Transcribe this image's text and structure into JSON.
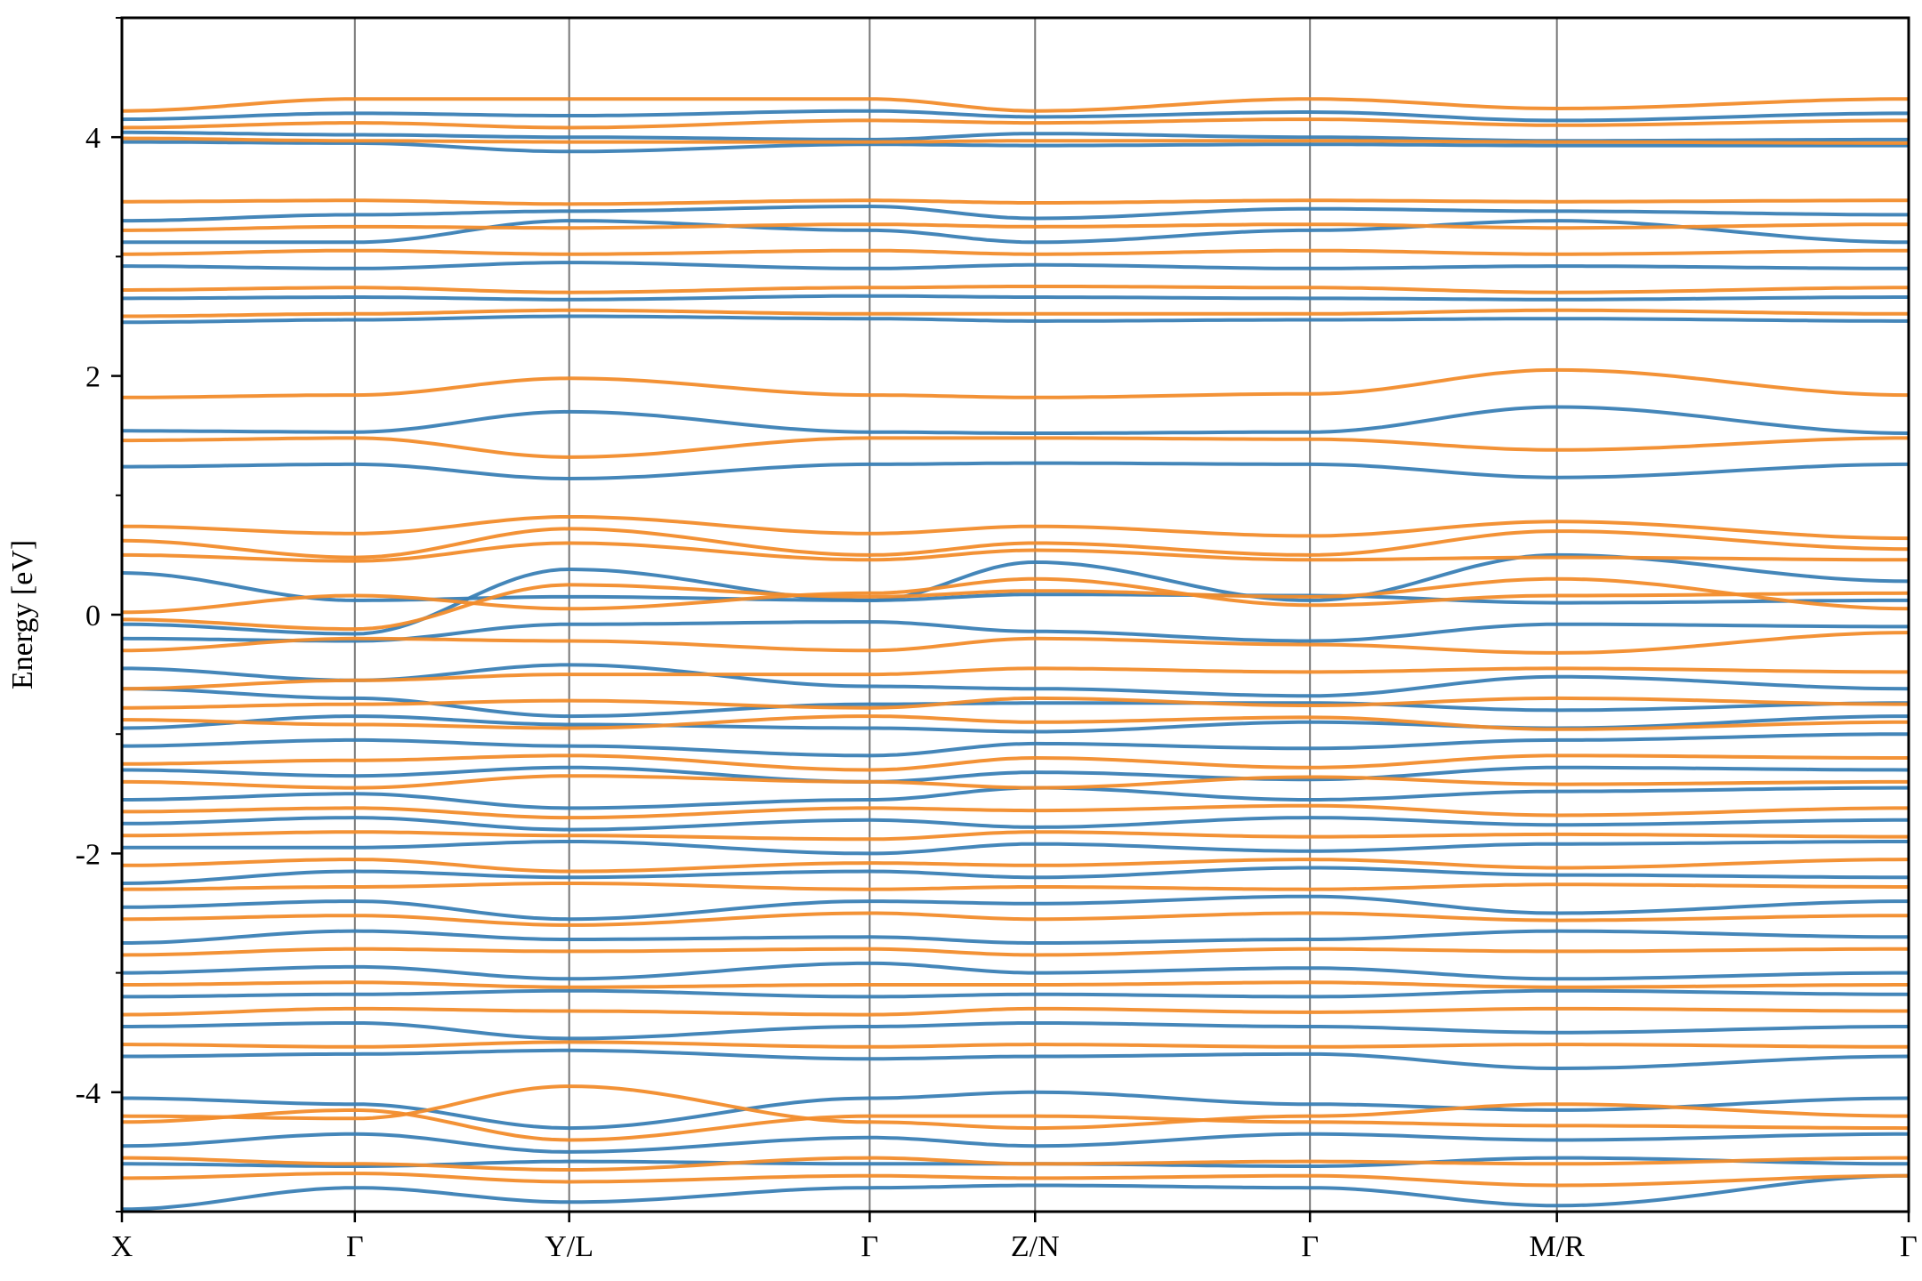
{
  "chart_data": {
    "type": "line",
    "ylabel": "Energy [eV]",
    "xlabel": "",
    "ylim": [
      -5.0,
      5.0
    ],
    "y_major_ticks": [
      -4,
      -2,
      0,
      2,
      4
    ],
    "y_tick_labels": [
      "-4",
      "-2",
      "0",
      "2",
      "4"
    ],
    "y_minor_ticks": [
      -5,
      -3,
      -1,
      1,
      3,
      5
    ],
    "k_path": [
      {
        "label": "X",
        "x": 0.0
      },
      {
        "label": "Γ",
        "x": 1.0
      },
      {
        "label": "Y/L",
        "x": 1.92
      },
      {
        "label": "Γ",
        "x": 3.21
      },
      {
        "label": "Z/N",
        "x": 3.92
      },
      {
        "label": "Γ",
        "x": 5.1
      },
      {
        "label": "M/R",
        "x": 6.16
      },
      {
        "label": "Γ",
        "x": 7.67
      }
    ],
    "xlim": [
      0.0,
      7.67
    ],
    "segments": [
      [
        0.0,
        1.92
      ],
      [
        1.92,
        3.92
      ],
      [
        3.92,
        6.16
      ],
      [
        6.16,
        7.67
      ]
    ],
    "vlines_at": [
      1.0,
      1.92,
      3.21,
      3.92,
      5.1,
      6.16
    ],
    "grid": false,
    "legend": "none",
    "series": [
      {
        "color": "#3a7fb5",
        "bands_at_nodes": [
          [
            3.96,
            3.95,
            3.88,
            3.94,
            3.93,
            3.94,
            3.93,
            3.93
          ],
          [
            4.04,
            4.02,
            4.0,
            3.98,
            4.03,
            4.0,
            3.97,
            3.98
          ],
          [
            4.15,
            4.2,
            4.18,
            4.22,
            4.17,
            4.21,
            4.14,
            4.2
          ],
          [
            2.45,
            2.47,
            2.5,
            2.48,
            2.46,
            2.47,
            2.48,
            2.46
          ],
          [
            2.65,
            2.66,
            2.64,
            2.67,
            2.66,
            2.65,
            2.64,
            2.66
          ],
          [
            2.92,
            2.9,
            2.95,
            2.9,
            2.93,
            2.9,
            2.92,
            2.9
          ],
          [
            3.12,
            3.12,
            3.3,
            3.22,
            3.12,
            3.22,
            3.3,
            3.12
          ],
          [
            3.3,
            3.35,
            3.38,
            3.42,
            3.32,
            3.4,
            3.38,
            3.35
          ],
          [
            1.24,
            1.26,
            1.14,
            1.26,
            1.27,
            1.26,
            1.15,
            1.26
          ],
          [
            1.54,
            1.53,
            1.7,
            1.53,
            1.52,
            1.53,
            1.74,
            1.52
          ],
          [
            0.35,
            0.12,
            0.15,
            0.12,
            0.17,
            0.16,
            0.1,
            0.12
          ],
          [
            -0.08,
            -0.16,
            0.38,
            0.12,
            0.44,
            0.12,
            0.5,
            0.28
          ],
          [
            -0.2,
            -0.22,
            -0.08,
            -0.06,
            -0.14,
            -0.22,
            -0.08,
            -0.1
          ],
          [
            -0.45,
            -0.55,
            -0.42,
            -0.6,
            -0.62,
            -0.68,
            -0.52,
            -0.62
          ],
          [
            -0.62,
            -0.7,
            -0.85,
            -0.75,
            -0.74,
            -0.74,
            -0.8,
            -0.74
          ],
          [
            -0.95,
            -0.85,
            -0.92,
            -0.95,
            -0.98,
            -0.9,
            -0.95,
            -0.85
          ],
          [
            -1.1,
            -1.05,
            -1.1,
            -1.18,
            -1.08,
            -1.12,
            -1.05,
            -1.0
          ],
          [
            -1.3,
            -1.35,
            -1.28,
            -1.4,
            -1.32,
            -1.38,
            -1.28,
            -1.3
          ],
          [
            -1.55,
            -1.5,
            -1.62,
            -1.55,
            -1.45,
            -1.55,
            -1.48,
            -1.45
          ],
          [
            -1.75,
            -1.7,
            -1.8,
            -1.72,
            -1.78,
            -1.7,
            -1.76,
            -1.72
          ],
          [
            -1.95,
            -1.95,
            -1.9,
            -2.0,
            -1.92,
            -1.98,
            -1.92,
            -1.9
          ],
          [
            -2.25,
            -2.15,
            -2.2,
            -2.15,
            -2.2,
            -2.12,
            -2.18,
            -2.2
          ],
          [
            -2.45,
            -2.4,
            -2.55,
            -2.4,
            -2.42,
            -2.36,
            -2.5,
            -2.4
          ],
          [
            -2.75,
            -2.65,
            -2.72,
            -2.7,
            -2.75,
            -2.72,
            -2.65,
            -2.7
          ],
          [
            -3.0,
            -2.95,
            -3.05,
            -2.92,
            -3.0,
            -2.96,
            -3.05,
            -3.0
          ],
          [
            -3.2,
            -3.18,
            -3.15,
            -3.2,
            -3.18,
            -3.2,
            -3.15,
            -3.18
          ],
          [
            -3.45,
            -3.42,
            -3.55,
            -3.45,
            -3.42,
            -3.45,
            -3.5,
            -3.45
          ],
          [
            -3.7,
            -3.68,
            -3.65,
            -3.72,
            -3.7,
            -3.68,
            -3.8,
            -3.7
          ],
          [
            -4.05,
            -4.1,
            -4.3,
            -4.05,
            -4.0,
            -4.1,
            -4.15,
            -4.05
          ],
          [
            -4.45,
            -4.35,
            -4.5,
            -4.38,
            -4.45,
            -4.35,
            -4.4,
            -4.35
          ],
          [
            -4.6,
            -4.62,
            -4.58,
            -4.6,
            -4.6,
            -4.62,
            -4.55,
            -4.6
          ],
          [
            -4.98,
            -4.8,
            -4.92,
            -4.8,
            -4.78,
            -4.8,
            -4.95,
            -4.7
          ]
        ]
      },
      {
        "color": "#f28c2b",
        "bands_at_nodes": [
          [
            3.99,
            3.97,
            3.96,
            3.96,
            3.97,
            3.97,
            3.96,
            3.95
          ],
          [
            4.08,
            4.12,
            4.08,
            4.14,
            4.12,
            4.15,
            4.1,
            4.14
          ],
          [
            4.22,
            4.32,
            4.32,
            4.32,
            4.22,
            4.32,
            4.24,
            4.32
          ],
          [
            2.5,
            2.52,
            2.55,
            2.52,
            2.52,
            2.52,
            2.55,
            2.52
          ],
          [
            2.72,
            2.74,
            2.7,
            2.74,
            2.75,
            2.74,
            2.7,
            2.74
          ],
          [
            3.02,
            3.05,
            3.02,
            3.05,
            3.02,
            3.05,
            3.02,
            3.05
          ],
          [
            3.22,
            3.25,
            3.24,
            3.27,
            3.25,
            3.27,
            3.24,
            3.27
          ],
          [
            3.46,
            3.47,
            3.44,
            3.47,
            3.45,
            3.47,
            3.46,
            3.47
          ],
          [
            1.46,
            1.48,
            1.32,
            1.48,
            1.48,
            1.47,
            1.38,
            1.48
          ],
          [
            1.82,
            1.84,
            1.98,
            1.84,
            1.82,
            1.85,
            2.05,
            1.84
          ],
          [
            0.5,
            0.45,
            0.6,
            0.46,
            0.54,
            0.46,
            0.48,
            0.46
          ],
          [
            0.62,
            0.48,
            0.72,
            0.5,
            0.6,
            0.5,
            0.7,
            0.55
          ],
          [
            0.74,
            0.68,
            0.82,
            0.68,
            0.74,
            0.66,
            0.78,
            0.64
          ],
          [
            0.02,
            0.16,
            0.05,
            0.18,
            0.3,
            0.08,
            0.16,
            0.18
          ],
          [
            -0.04,
            -0.12,
            0.25,
            0.15,
            0.2,
            0.15,
            0.3,
            0.05
          ],
          [
            -0.3,
            -0.2,
            -0.22,
            -0.3,
            -0.2,
            -0.25,
            -0.32,
            -0.15
          ],
          [
            -0.62,
            -0.55,
            -0.5,
            -0.5,
            -0.45,
            -0.48,
            -0.45,
            -0.48
          ],
          [
            -0.78,
            -0.75,
            -0.72,
            -0.78,
            -0.7,
            -0.76,
            -0.7,
            -0.75
          ],
          [
            -0.88,
            -0.92,
            -0.95,
            -0.85,
            -0.9,
            -0.86,
            -0.96,
            -0.9
          ],
          [
            -1.25,
            -1.22,
            -1.18,
            -1.3,
            -1.2,
            -1.28,
            -1.18,
            -1.2
          ],
          [
            -1.4,
            -1.45,
            -1.35,
            -1.4,
            -1.45,
            -1.36,
            -1.42,
            -1.4
          ],
          [
            -1.65,
            -1.62,
            -1.7,
            -1.62,
            -1.64,
            -1.6,
            -1.68,
            -1.62
          ],
          [
            -1.85,
            -1.82,
            -1.85,
            -1.88,
            -1.82,
            -1.86,
            -1.84,
            -1.86
          ],
          [
            -2.1,
            -2.05,
            -2.15,
            -2.08,
            -2.1,
            -2.05,
            -2.12,
            -2.05
          ],
          [
            -2.3,
            -2.28,
            -2.25,
            -2.3,
            -2.28,
            -2.3,
            -2.26,
            -2.28
          ],
          [
            -2.55,
            -2.52,
            -2.6,
            -2.5,
            -2.55,
            -2.5,
            -2.56,
            -2.52
          ],
          [
            -2.85,
            -2.8,
            -2.82,
            -2.8,
            -2.85,
            -2.8,
            -2.82,
            -2.8
          ],
          [
            -3.1,
            -3.08,
            -3.12,
            -3.1,
            -3.1,
            -3.08,
            -3.12,
            -3.1
          ],
          [
            -3.35,
            -3.3,
            -3.32,
            -3.35,
            -3.3,
            -3.33,
            -3.3,
            -3.32
          ],
          [
            -3.6,
            -3.62,
            -3.58,
            -3.62,
            -3.6,
            -3.62,
            -3.6,
            -3.62
          ],
          [
            -4.2,
            -4.22,
            -3.95,
            -4.25,
            -4.3,
            -4.2,
            -4.1,
            -4.2
          ],
          [
            -4.25,
            -4.15,
            -4.4,
            -4.2,
            -4.2,
            -4.25,
            -4.28,
            -4.3
          ],
          [
            -4.55,
            -4.6,
            -4.65,
            -4.55,
            -4.6,
            -4.58,
            -4.6,
            -4.55
          ],
          [
            -4.72,
            -4.68,
            -4.75,
            -4.7,
            -4.72,
            -4.7,
            -4.78,
            -4.7
          ]
        ]
      }
    ]
  }
}
